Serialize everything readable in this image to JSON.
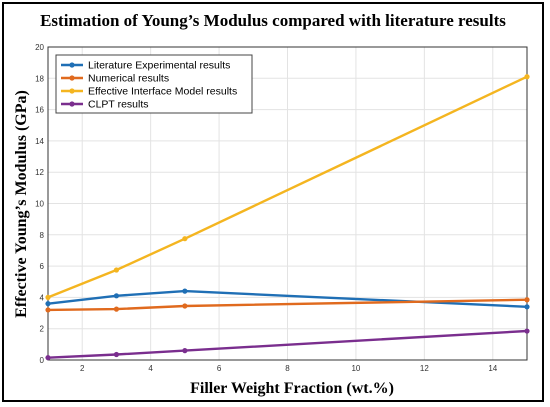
{
  "chart_data": {
    "type": "line",
    "title": "Estimation of Young’s Modulus compared with literature results",
    "xlabel": "Filler Weight Fraction (wt.%)",
    "ylabel": "Effective Young’s Modulus (GPa)",
    "xlim": [
      1,
      15
    ],
    "ylim": [
      0,
      20
    ],
    "xticks": [
      "2",
      "4",
      "6",
      "8",
      "10",
      "12",
      "14"
    ],
    "yticks": [
      "0",
      "2",
      "4",
      "6",
      "8",
      "10",
      "12",
      "14",
      "16",
      "18",
      "20"
    ],
    "grid": true,
    "legend_position": "top-left",
    "series": [
      {
        "name": "Literature Experimental results",
        "color": "#1f6fb5",
        "x": [
          1,
          3,
          5,
          15
        ],
        "y": [
          3.6,
          4.1,
          4.4,
          3.4
        ]
      },
      {
        "name": "Numerical results",
        "color": "#e06a1e",
        "x": [
          1,
          3,
          5,
          15
        ],
        "y": [
          3.2,
          3.25,
          3.45,
          3.85
        ]
      },
      {
        "name": "Effective Interface Model results",
        "color": "#f4b520",
        "x": [
          1,
          3,
          5,
          15
        ],
        "y": [
          4.0,
          5.75,
          7.75,
          18.1
        ]
      },
      {
        "name": "CLPT results",
        "color": "#7a2e8e",
        "x": [
          1,
          3,
          5,
          15
        ],
        "y": [
          0.15,
          0.35,
          0.6,
          1.85
        ]
      }
    ]
  }
}
